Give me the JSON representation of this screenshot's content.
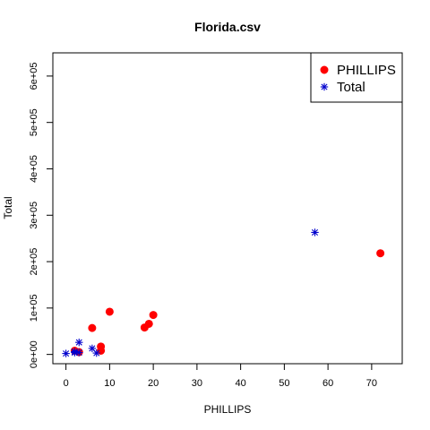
{
  "chart_data": {
    "type": "scatter",
    "title": "Florida.csv",
    "xlabel": "PHILLIPS",
    "ylabel": "Total",
    "xlim": [
      -3,
      77
    ],
    "ylim": [
      -20000,
      650000
    ],
    "x_ticks": [
      0,
      10,
      20,
      30,
      40,
      50,
      60,
      70
    ],
    "x_tick_labels": [
      "0",
      "10",
      "20",
      "30",
      "40",
      "50",
      "60",
      "70"
    ],
    "y_ticks": [
      0,
      100000,
      200000,
      300000,
      400000,
      500000,
      600000
    ],
    "y_tick_labels": [
      "0e+00",
      "1e+05",
      "2e+05",
      "3e+05",
      "4e+05",
      "5e+05",
      "6e+05"
    ],
    "grid": false,
    "legend_position": "top-right",
    "series": [
      {
        "name": "PHILLIPS",
        "marker": "filled-circle",
        "color": "#ff0000",
        "points": [
          [
            2,
            8000
          ],
          [
            3,
            5000
          ],
          [
            6,
            57000
          ],
          [
            8,
            17000
          ],
          [
            8,
            8000
          ],
          [
            10,
            92000
          ],
          [
            18,
            58000
          ],
          [
            19,
            66000
          ],
          [
            20,
            85000
          ],
          [
            72,
            218000
          ]
        ]
      },
      {
        "name": "Total",
        "marker": "asterisk",
        "color": "#0000cd",
        "points": [
          [
            0,
            2000
          ],
          [
            2,
            4000
          ],
          [
            2,
            6000
          ],
          [
            3,
            26000
          ],
          [
            3,
            4000
          ],
          [
            6,
            13000
          ],
          [
            7,
            3000
          ],
          [
            57,
            263000
          ]
        ]
      }
    ]
  }
}
